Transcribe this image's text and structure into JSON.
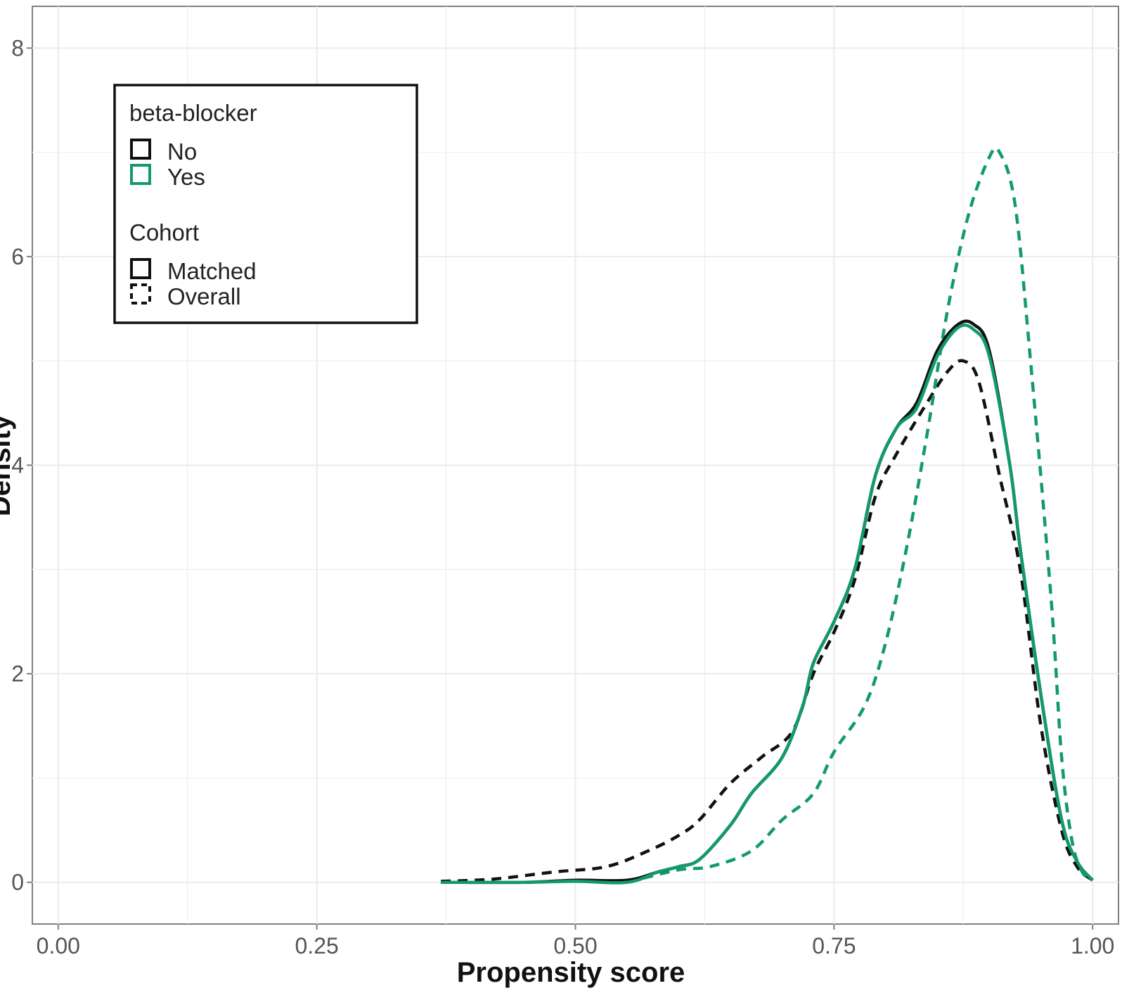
{
  "chart_data": {
    "type": "line",
    "title": "",
    "xlabel": "Propensity score",
    "ylabel": "Density",
    "xlim": [
      -0.025,
      1.025
    ],
    "ylim": [
      -0.4,
      8.4
    ],
    "x_ticks": [
      0.0,
      0.25,
      0.5,
      0.75,
      1.0
    ],
    "x_tick_labels": [
      "0.00",
      "0.25",
      "0.50",
      "0.75",
      "1.00"
    ],
    "y_ticks": [
      0,
      2,
      4,
      6,
      8
    ],
    "y_tick_labels": [
      "0",
      "2",
      "4",
      "6",
      "8"
    ],
    "grid": true,
    "legend": {
      "placement": "top-left",
      "groups": [
        {
          "title": "beta-blocker",
          "entries": [
            {
              "label": "No",
              "color": "#111111",
              "linestyle": "solid"
            },
            {
              "label": "Yes",
              "color": "#129a6e",
              "linestyle": "solid"
            }
          ]
        },
        {
          "title": "Cohort",
          "entries": [
            {
              "label": "Matched",
              "color": "#111111",
              "linestyle": "solid"
            },
            {
              "label": "Overall",
              "color": "#111111",
              "linestyle": "dashed"
            }
          ]
        }
      ]
    },
    "series": [
      {
        "beta_blocker": "No",
        "cohort": "Matched",
        "color": "#111111",
        "linestyle": "solid",
        "points": [
          [
            0.37,
            0.0
          ],
          [
            0.45,
            0.0
          ],
          [
            0.5,
            0.02
          ],
          [
            0.55,
            0.02
          ],
          [
            0.58,
            0.1
          ],
          [
            0.6,
            0.15
          ],
          [
            0.62,
            0.22
          ],
          [
            0.65,
            0.55
          ],
          [
            0.67,
            0.85
          ],
          [
            0.7,
            1.2
          ],
          [
            0.72,
            1.7
          ],
          [
            0.73,
            2.1
          ],
          [
            0.75,
            2.5
          ],
          [
            0.77,
            3.0
          ],
          [
            0.79,
            3.9
          ],
          [
            0.81,
            4.35
          ],
          [
            0.83,
            4.6
          ],
          [
            0.85,
            5.1
          ],
          [
            0.87,
            5.35
          ],
          [
            0.885,
            5.35
          ],
          [
            0.9,
            5.1
          ],
          [
            0.92,
            4.0
          ],
          [
            0.93,
            3.2
          ],
          [
            0.95,
            1.8
          ],
          [
            0.97,
            0.6
          ],
          [
            0.985,
            0.2
          ],
          [
            1.0,
            0.02
          ]
        ]
      },
      {
        "beta_blocker": "Yes",
        "cohort": "Matched",
        "color": "#129a6e",
        "linestyle": "solid",
        "points": [
          [
            0.37,
            0.0
          ],
          [
            0.45,
            0.0
          ],
          [
            0.5,
            0.01
          ],
          [
            0.55,
            0.0
          ],
          [
            0.58,
            0.1
          ],
          [
            0.6,
            0.15
          ],
          [
            0.62,
            0.22
          ],
          [
            0.65,
            0.55
          ],
          [
            0.67,
            0.85
          ],
          [
            0.7,
            1.2
          ],
          [
            0.72,
            1.7
          ],
          [
            0.73,
            2.1
          ],
          [
            0.75,
            2.5
          ],
          [
            0.77,
            3.0
          ],
          [
            0.79,
            3.9
          ],
          [
            0.81,
            4.35
          ],
          [
            0.83,
            4.55
          ],
          [
            0.85,
            5.05
          ],
          [
            0.87,
            5.32
          ],
          [
            0.885,
            5.3
          ],
          [
            0.9,
            5.05
          ],
          [
            0.92,
            4.0
          ],
          [
            0.93,
            3.2
          ],
          [
            0.95,
            1.8
          ],
          [
            0.97,
            0.6
          ],
          [
            0.985,
            0.2
          ],
          [
            1.0,
            0.02
          ]
        ]
      },
      {
        "beta_blocker": "No",
        "cohort": "Overall",
        "color": "#111111",
        "linestyle": "dashed",
        "points": [
          [
            0.37,
            0.01
          ],
          [
            0.42,
            0.03
          ],
          [
            0.48,
            0.1
          ],
          [
            0.53,
            0.15
          ],
          [
            0.57,
            0.3
          ],
          [
            0.6,
            0.45
          ],
          [
            0.62,
            0.6
          ],
          [
            0.65,
            0.95
          ],
          [
            0.68,
            1.2
          ],
          [
            0.71,
            1.45
          ],
          [
            0.73,
            2.0
          ],
          [
            0.75,
            2.4
          ],
          [
            0.77,
            2.9
          ],
          [
            0.79,
            3.7
          ],
          [
            0.81,
            4.1
          ],
          [
            0.84,
            4.6
          ],
          [
            0.86,
            4.9
          ],
          [
            0.875,
            5.0
          ],
          [
            0.89,
            4.8
          ],
          [
            0.91,
            3.9
          ],
          [
            0.93,
            3.0
          ],
          [
            0.95,
            1.5
          ],
          [
            0.97,
            0.5
          ],
          [
            0.985,
            0.15
          ],
          [
            1.0,
            0.02
          ]
        ]
      },
      {
        "beta_blocker": "Yes",
        "cohort": "Overall",
        "color": "#129a6e",
        "linestyle": "dashed",
        "points": [
          [
            0.55,
            0.0
          ],
          [
            0.6,
            0.12
          ],
          [
            0.63,
            0.15
          ],
          [
            0.67,
            0.3
          ],
          [
            0.7,
            0.6
          ],
          [
            0.73,
            0.85
          ],
          [
            0.75,
            1.25
          ],
          [
            0.78,
            1.7
          ],
          [
            0.8,
            2.3
          ],
          [
            0.82,
            3.2
          ],
          [
            0.84,
            4.3
          ],
          [
            0.86,
            5.5
          ],
          [
            0.88,
            6.4
          ],
          [
            0.9,
            6.95
          ],
          [
            0.91,
            7.0
          ],
          [
            0.925,
            6.5
          ],
          [
            0.94,
            5.0
          ],
          [
            0.96,
            2.7
          ],
          [
            0.97,
            1.2
          ],
          [
            0.98,
            0.4
          ],
          [
            0.99,
            0.1
          ],
          [
            1.0,
            0.02
          ]
        ]
      }
    ]
  }
}
